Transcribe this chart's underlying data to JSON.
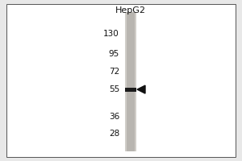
{
  "title": "HepG2",
  "mw_markers": [
    130,
    95,
    72,
    55,
    36,
    28
  ],
  "band_mw": 55,
  "bg_color": "#ffffff",
  "outer_bg_color": "#e8e8e8",
  "lane_color": "#b8b5b0",
  "lane_color2": "#d0cdc8",
  "band_color": "#1a1a1a",
  "border_color": "#555555",
  "text_color": "#111111",
  "arrow_color": "#111111",
  "title_fontsize": 8,
  "marker_fontsize": 7.5,
  "fig_width": 3.0,
  "fig_height": 2.0,
  "dpi": 100
}
